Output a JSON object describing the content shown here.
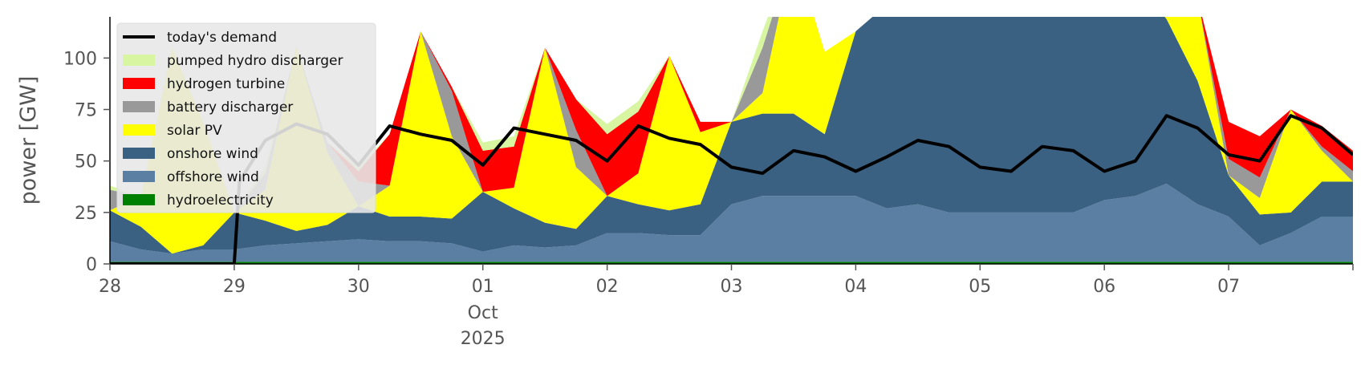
{
  "chart_data": {
    "type": "area",
    "ylabel": "power [GW]",
    "ylim": [
      0,
      120
    ],
    "xlim": [
      "2025-09-28T00:00",
      "2025-10-08T00:00"
    ],
    "yticks": [
      0,
      25,
      50,
      75,
      100
    ],
    "xticks": [
      {
        "date": "2025-09-28",
        "label": "28"
      },
      {
        "date": "2025-09-29",
        "label": "29"
      },
      {
        "date": "2025-09-30",
        "label": "30"
      },
      {
        "date": "2025-10-01",
        "label": "01",
        "sub": [
          "Oct",
          "2025"
        ]
      },
      {
        "date": "2025-10-02",
        "label": "02"
      },
      {
        "date": "2025-10-03",
        "label": "03"
      },
      {
        "date": "2025-10-04",
        "label": "04"
      },
      {
        "date": "2025-10-05",
        "label": "05"
      },
      {
        "date": "2025-10-06",
        "label": "06"
      },
      {
        "date": "2025-10-07",
        "label": "07"
      }
    ],
    "grid": false,
    "legend_position": "top-left",
    "x": [
      "2025-09-28T00:00",
      "2025-09-28T06:00",
      "2025-09-28T12:00",
      "2025-09-28T18:00",
      "2025-09-29T00:00",
      "2025-09-29T06:00",
      "2025-09-29T12:00",
      "2025-09-29T18:00",
      "2025-09-30T00:00",
      "2025-09-30T06:00",
      "2025-09-30T12:00",
      "2025-09-30T18:00",
      "2025-10-01T00:00",
      "2025-10-01T06:00",
      "2025-10-01T12:00",
      "2025-10-01T18:00",
      "2025-10-02T00:00",
      "2025-10-02T06:00",
      "2025-10-02T12:00",
      "2025-10-02T18:00",
      "2025-10-03T00:00",
      "2025-10-03T06:00",
      "2025-10-03T12:00",
      "2025-10-03T18:00",
      "2025-10-04T00:00",
      "2025-10-04T06:00",
      "2025-10-04T12:00",
      "2025-10-04T18:00",
      "2025-10-05T00:00",
      "2025-10-05T06:00",
      "2025-10-05T12:00",
      "2025-10-05T18:00",
      "2025-10-06T00:00",
      "2025-10-06T06:00",
      "2025-10-06T12:00",
      "2025-10-06T18:00",
      "2025-10-07T00:00",
      "2025-10-07T06:00",
      "2025-10-07T12:00",
      "2025-10-07T18:00",
      "2025-10-08T00:00"
    ],
    "stack_series": [
      {
        "name": "hydroelectricity",
        "color": "#008000",
        "values": [
          1,
          1,
          1,
          1,
          1,
          1,
          1,
          1,
          1,
          1,
          1,
          1,
          1,
          1,
          1,
          1,
          1,
          1,
          1,
          1,
          1,
          1,
          1,
          1,
          1,
          1,
          1,
          1,
          1,
          1,
          1,
          1,
          1,
          1,
          1,
          1,
          1,
          1,
          1,
          1,
          1
        ]
      },
      {
        "name": "offshore wind",
        "color": "#5b7fa3",
        "values": [
          10,
          6,
          4,
          6,
          6,
          8,
          9,
          10,
          11,
          10,
          10,
          9,
          5,
          8,
          7,
          8,
          14,
          14,
          13,
          13,
          28,
          32,
          32,
          32,
          32,
          26,
          28,
          24,
          24,
          24,
          24,
          24,
          30,
          32,
          38,
          28,
          22,
          8,
          14,
          22,
          22
        ]
      },
      {
        "name": "onshore wind",
        "color": "#3b6182",
        "values": [
          15,
          11,
          0,
          2,
          18,
          12,
          6,
          8,
          16,
          12,
          12,
          12,
          29,
          18,
          12,
          8,
          18,
          14,
          12,
          15,
          40,
          40,
          40,
          30,
          80,
          99,
          102,
          97,
          102,
          100,
          102,
          99,
          100,
          104,
          80,
          60,
          20,
          15,
          10,
          17,
          17
        ]
      },
      {
        "name": "solar PV",
        "color": "#ffff00",
        "values": [
          0,
          15,
          100,
          60,
          0,
          15,
          90,
          35,
          0,
          15,
          90,
          40,
          0,
          10,
          85,
          30,
          0,
          15,
          75,
          35,
          0,
          10,
          80,
          40,
          0,
          0,
          0,
          0,
          0,
          0,
          0,
          0,
          0,
          0,
          10,
          40,
          0,
          8,
          50,
          15,
          0
        ]
      },
      {
        "name": "battery discharger",
        "color": "#999999",
        "values": [
          10,
          0,
          0,
          0,
          0,
          8,
          0,
          5,
          12,
          0,
          0,
          22,
          0,
          0,
          0,
          18,
          0,
          0,
          0,
          0,
          0,
          22,
          0,
          0,
          0,
          0,
          0,
          0,
          0,
          0,
          0,
          0,
          0,
          0,
          0,
          0,
          8,
          10,
          0,
          2,
          5
        ]
      },
      {
        "name": "hydrogen turbine",
        "color": "#ff0000",
        "values": [
          0,
          0,
          0,
          0,
          0,
          0,
          0,
          0,
          5,
          25,
          0,
          2,
          20,
          20,
          0,
          15,
          30,
          30,
          0,
          5,
          0,
          0,
          0,
          0,
          0,
          0,
          0,
          0,
          0,
          0,
          0,
          0,
          0,
          0,
          0,
          0,
          18,
          20,
          0,
          10,
          10
        ]
      },
      {
        "name": "pumped hydro discharger",
        "color": "#d8f5a2",
        "values": [
          2,
          0,
          0,
          0,
          0,
          3,
          0,
          0,
          2,
          0,
          0,
          0,
          4,
          5,
          0,
          0,
          5,
          5,
          0,
          0,
          0,
          8,
          0,
          0,
          0,
          0,
          0,
          0,
          0,
          0,
          0,
          0,
          0,
          0,
          0,
          0,
          0,
          0,
          0,
          0,
          0
        ]
      }
    ],
    "line_series": {
      "name": "today's demand",
      "color": "#000000",
      "x": [
        "2025-09-28T00:00",
        "2025-09-28T12:00",
        "2025-09-29T00:00",
        "2025-09-29T01:00",
        "2025-09-29T06:00",
        "2025-09-29T12:00",
        "2025-09-29T18:00",
        "2025-09-30T00:00",
        "2025-09-30T06:00",
        "2025-09-30T12:00",
        "2025-09-30T18:00",
        "2025-10-01T00:00",
        "2025-10-01T06:00",
        "2025-10-01T12:00",
        "2025-10-01T18:00",
        "2025-10-02T00:00",
        "2025-10-02T06:00",
        "2025-10-02T12:00",
        "2025-10-02T18:00",
        "2025-10-03T00:00",
        "2025-10-03T06:00",
        "2025-10-03T12:00",
        "2025-10-03T18:00",
        "2025-10-04T00:00",
        "2025-10-04T06:00",
        "2025-10-04T12:00",
        "2025-10-04T18:00",
        "2025-10-05T00:00",
        "2025-10-05T06:00",
        "2025-10-05T12:00",
        "2025-10-05T18:00",
        "2025-10-06T00:00",
        "2025-10-06T06:00",
        "2025-10-06T12:00",
        "2025-10-06T18:00",
        "2025-10-07T00:00",
        "2025-10-07T06:00",
        "2025-10-07T12:00",
        "2025-10-07T18:00",
        "2025-10-08T00:00"
      ],
      "values": [
        0,
        0,
        0,
        40,
        60,
        68,
        63,
        48,
        67,
        63,
        60,
        48,
        66,
        63,
        60,
        50,
        67,
        61,
        58,
        47,
        44,
        55,
        52,
        45,
        52,
        60,
        57,
        47,
        45,
        57,
        55,
        45,
        50,
        72,
        66,
        53,
        50,
        72,
        66,
        53
      ]
    },
    "legend": [
      {
        "label": "today's demand",
        "color": "#000000",
        "kind": "line"
      },
      {
        "label": "pumped hydro discharger",
        "color": "#d8f5a2",
        "kind": "patch"
      },
      {
        "label": "hydrogen turbine",
        "color": "#ff0000",
        "kind": "patch"
      },
      {
        "label": "battery discharger",
        "color": "#999999",
        "kind": "patch"
      },
      {
        "label": "solar PV",
        "color": "#ffff00",
        "kind": "patch"
      },
      {
        "label": "onshore wind",
        "color": "#3b6182",
        "kind": "patch"
      },
      {
        "label": "offshore wind",
        "color": "#5b7fa3",
        "kind": "patch"
      },
      {
        "label": "hydroelectricity",
        "color": "#008000",
        "kind": "patch"
      }
    ]
  }
}
